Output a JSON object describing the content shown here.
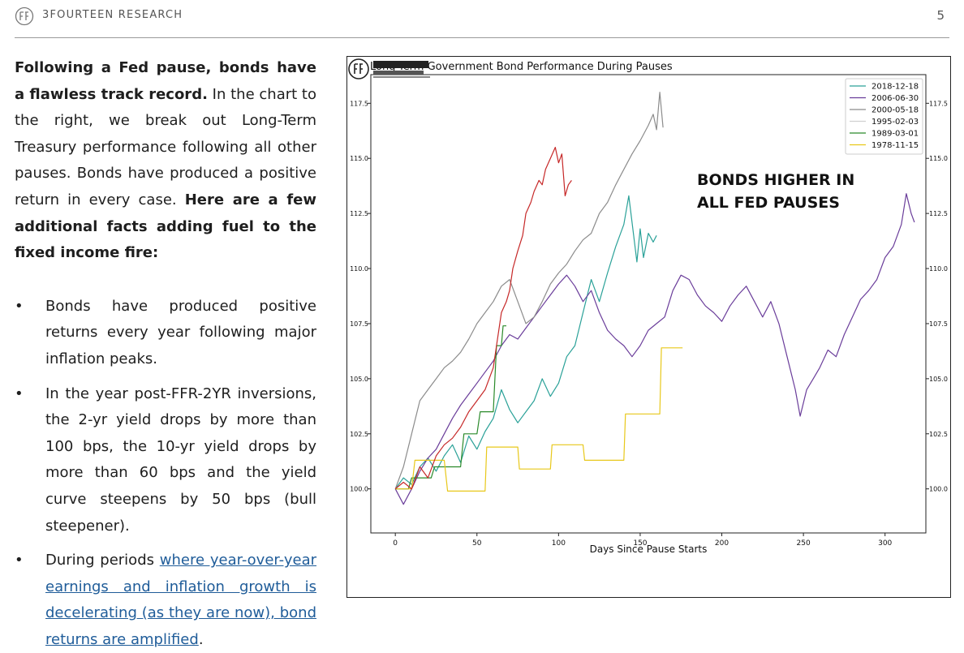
{
  "header": {
    "brand": "3FOURTEEN RESEARCH",
    "page_number": "5"
  },
  "body": {
    "intro_bold": "Following a Fed pause, bonds have a flawless track record.",
    "intro_text": " In the chart to the right, we break out Long-Term Treasury performance following all other pauses. Bonds have produced a positive return in every case. ",
    "intro_bold2": "Here are a few additional facts adding fuel to the fixed income fire:",
    "bullets": [
      {
        "marker": "•",
        "text": "Bonds have produced positive returns every year following major inflation peaks."
      },
      {
        "marker": "•",
        "text": "In the year post-FFR-2YR inversions, the 2-yr yield drops by more than 100 bps, the 10-yr yield drops by more than 60 bps and the yield curve steepens by 50 bps (bull steepener)."
      },
      {
        "marker": "•",
        "text_before": "During periods ",
        "link": "where year-over-year earnings and inflation growth is decelerating (as they are now), bond returns are amplified",
        "text_after": "."
      }
    ]
  },
  "chart_data": {
    "type": "line",
    "title": "Long-Term Government Bond Performance During Pauses",
    "xlabel": "Days Since Pause Starts",
    "ylabel": "",
    "xlim": [
      -15,
      325
    ],
    "ylim": [
      98.0,
      118.8
    ],
    "x_ticks": [
      0,
      50,
      100,
      150,
      200,
      250,
      300
    ],
    "y_ticks": [
      100.0,
      102.5,
      105.0,
      107.5,
      110.0,
      112.5,
      115.0,
      117.5
    ],
    "annotation": [
      "BONDS HIGHER IN",
      "ALL FED PAUSES"
    ],
    "legend_position": "top-right",
    "grid": false,
    "series": [
      {
        "name": "2018-12-18",
        "color": "#2aa198",
        "points": [
          [
            0,
            100.0
          ],
          [
            5,
            100.5
          ],
          [
            10,
            100.2
          ],
          [
            15,
            101.0
          ],
          [
            20,
            101.4
          ],
          [
            25,
            100.8
          ],
          [
            30,
            101.5
          ],
          [
            35,
            102.0
          ],
          [
            40,
            101.2
          ],
          [
            45,
            102.4
          ],
          [
            50,
            101.8
          ],
          [
            55,
            102.6
          ],
          [
            60,
            103.2
          ],
          [
            65,
            104.5
          ],
          [
            70,
            103.6
          ],
          [
            75,
            103.0
          ],
          [
            80,
            103.5
          ],
          [
            85,
            104.0
          ],
          [
            90,
            105.0
          ],
          [
            95,
            104.2
          ],
          [
            100,
            104.8
          ],
          [
            105,
            106.0
          ],
          [
            110,
            106.5
          ],
          [
            115,
            108.0
          ],
          [
            120,
            109.5
          ],
          [
            125,
            108.5
          ],
          [
            130,
            109.8
          ],
          [
            135,
            111.0
          ],
          [
            140,
            112.0
          ],
          [
            143,
            113.3
          ],
          [
            146,
            111.5
          ],
          [
            148,
            110.3
          ],
          [
            150,
            111.8
          ],
          [
            152,
            110.5
          ],
          [
            155,
            111.6
          ],
          [
            158,
            111.2
          ],
          [
            160,
            111.5
          ]
        ]
      },
      {
        "name": "2006-06-30",
        "color": "#6a3d9a",
        "points": [
          [
            0,
            100.0
          ],
          [
            5,
            99.3
          ],
          [
            10,
            100.0
          ],
          [
            15,
            100.8
          ],
          [
            20,
            101.4
          ],
          [
            25,
            101.8
          ],
          [
            30,
            102.5
          ],
          [
            35,
            103.2
          ],
          [
            40,
            103.8
          ],
          [
            45,
            104.3
          ],
          [
            50,
            104.8
          ],
          [
            55,
            105.3
          ],
          [
            60,
            105.8
          ],
          [
            65,
            106.5
          ],
          [
            70,
            107.0
          ],
          [
            75,
            106.8
          ],
          [
            80,
            107.3
          ],
          [
            85,
            107.8
          ],
          [
            90,
            108.3
          ],
          [
            95,
            108.8
          ],
          [
            100,
            109.3
          ],
          [
            105,
            109.7
          ],
          [
            110,
            109.2
          ],
          [
            115,
            108.5
          ],
          [
            120,
            109.0
          ],
          [
            125,
            108.0
          ],
          [
            130,
            107.2
          ],
          [
            135,
            106.8
          ],
          [
            140,
            106.5
          ],
          [
            145,
            106.0
          ],
          [
            150,
            106.5
          ],
          [
            155,
            107.2
          ],
          [
            160,
            107.5
          ],
          [
            165,
            107.8
          ],
          [
            170,
            109.0
          ],
          [
            175,
            109.7
          ],
          [
            180,
            109.5
          ],
          [
            185,
            108.8
          ],
          [
            190,
            108.3
          ],
          [
            195,
            108.0
          ],
          [
            200,
            107.6
          ],
          [
            205,
            108.3
          ],
          [
            210,
            108.8
          ],
          [
            215,
            109.2
          ],
          [
            220,
            108.5
          ],
          [
            225,
            107.8
          ],
          [
            230,
            108.5
          ],
          [
            235,
            107.5
          ],
          [
            240,
            106.0
          ],
          [
            245,
            104.5
          ],
          [
            248,
            103.3
          ],
          [
            252,
            104.5
          ],
          [
            256,
            105.0
          ],
          [
            260,
            105.5
          ],
          [
            265,
            106.3
          ],
          [
            270,
            106.0
          ],
          [
            275,
            107.0
          ],
          [
            280,
            107.8
          ],
          [
            285,
            108.6
          ],
          [
            290,
            109.0
          ],
          [
            295,
            109.5
          ],
          [
            300,
            110.5
          ],
          [
            305,
            111.0
          ],
          [
            310,
            112.0
          ],
          [
            313,
            113.4
          ],
          [
            316,
            112.5
          ],
          [
            318,
            112.1
          ]
        ]
      },
      {
        "name": "2000-05-18",
        "color": "#8c8c8c",
        "points": [
          [
            0,
            100.0
          ],
          [
            5,
            101.0
          ],
          [
            10,
            102.5
          ],
          [
            15,
            104.0
          ],
          [
            20,
            104.5
          ],
          [
            25,
            105.0
          ],
          [
            30,
            105.5
          ],
          [
            35,
            105.8
          ],
          [
            40,
            106.2
          ],
          [
            45,
            106.8
          ],
          [
            50,
            107.5
          ],
          [
            55,
            108.0
          ],
          [
            60,
            108.5
          ],
          [
            65,
            109.2
          ],
          [
            70,
            109.5
          ],
          [
            75,
            108.5
          ],
          [
            80,
            107.5
          ],
          [
            85,
            107.8
          ],
          [
            90,
            108.5
          ],
          [
            95,
            109.3
          ],
          [
            100,
            109.8
          ],
          [
            105,
            110.2
          ],
          [
            110,
            110.8
          ],
          [
            115,
            111.3
          ],
          [
            120,
            111.6
          ],
          [
            125,
            112.5
          ],
          [
            130,
            113.0
          ],
          [
            135,
            113.8
          ],
          [
            140,
            114.5
          ],
          [
            145,
            115.2
          ],
          [
            150,
            115.8
          ],
          [
            155,
            116.5
          ],
          [
            158,
            117.0
          ],
          [
            160,
            116.3
          ],
          [
            162,
            118.0
          ],
          [
            164,
            116.4
          ]
        ]
      },
      {
        "name": "1995-02-03",
        "color": "#d0d0d0",
        "points": []
      },
      {
        "name": "1989-03-01",
        "color": "#2a8a2a",
        "points": [
          [
            0,
            100.0
          ],
          [
            8,
            100.0
          ],
          [
            10,
            100.5
          ],
          [
            22,
            100.5
          ],
          [
            24,
            101.0
          ],
          [
            40,
            101.0
          ],
          [
            42,
            102.5
          ],
          [
            50,
            102.5
          ],
          [
            52,
            103.5
          ],
          [
            60,
            103.5
          ],
          [
            62,
            106.5
          ],
          [
            65,
            106.5
          ],
          [
            66,
            107.4
          ],
          [
            68,
            107.4
          ]
        ]
      },
      {
        "name": "1978-11-15",
        "color": "#e8c81a",
        "points": [
          [
            0,
            100.0
          ],
          [
            10,
            100.0
          ],
          [
            12,
            101.3
          ],
          [
            30,
            101.3
          ],
          [
            32,
            99.9
          ],
          [
            55,
            99.9
          ],
          [
            56,
            101.9
          ],
          [
            75,
            101.9
          ],
          [
            76,
            100.9
          ],
          [
            95,
            100.9
          ],
          [
            96,
            102.0
          ],
          [
            115,
            102.0
          ],
          [
            116,
            101.3
          ],
          [
            140,
            101.3
          ],
          [
            141,
            103.4
          ],
          [
            162,
            103.4
          ],
          [
            163,
            106.4
          ],
          [
            176,
            106.4
          ]
        ]
      },
      {
        "name": "",
        "color": "#c62828",
        "points": [
          [
            0,
            100.0
          ],
          [
            5,
            100.3
          ],
          [
            10,
            100.0
          ],
          [
            15,
            101.0
          ],
          [
            20,
            100.5
          ],
          [
            25,
            101.5
          ],
          [
            30,
            102.0
          ],
          [
            35,
            102.3
          ],
          [
            40,
            102.8
          ],
          [
            45,
            103.5
          ],
          [
            50,
            104.0
          ],
          [
            55,
            104.5
          ],
          [
            60,
            105.5
          ],
          [
            62,
            106.5
          ],
          [
            65,
            108.0
          ],
          [
            68,
            108.5
          ],
          [
            70,
            109.0
          ],
          [
            72,
            110.0
          ],
          [
            75,
            110.8
          ],
          [
            78,
            111.5
          ],
          [
            80,
            112.5
          ],
          [
            83,
            113.0
          ],
          [
            85,
            113.5
          ],
          [
            88,
            114.0
          ],
          [
            90,
            113.8
          ],
          [
            92,
            114.5
          ],
          [
            95,
            115.0
          ],
          [
            98,
            115.5
          ],
          [
            100,
            114.8
          ],
          [
            102,
            115.2
          ],
          [
            104,
            113.3
          ],
          [
            106,
            113.8
          ],
          [
            108,
            114.0
          ]
        ]
      }
    ]
  }
}
